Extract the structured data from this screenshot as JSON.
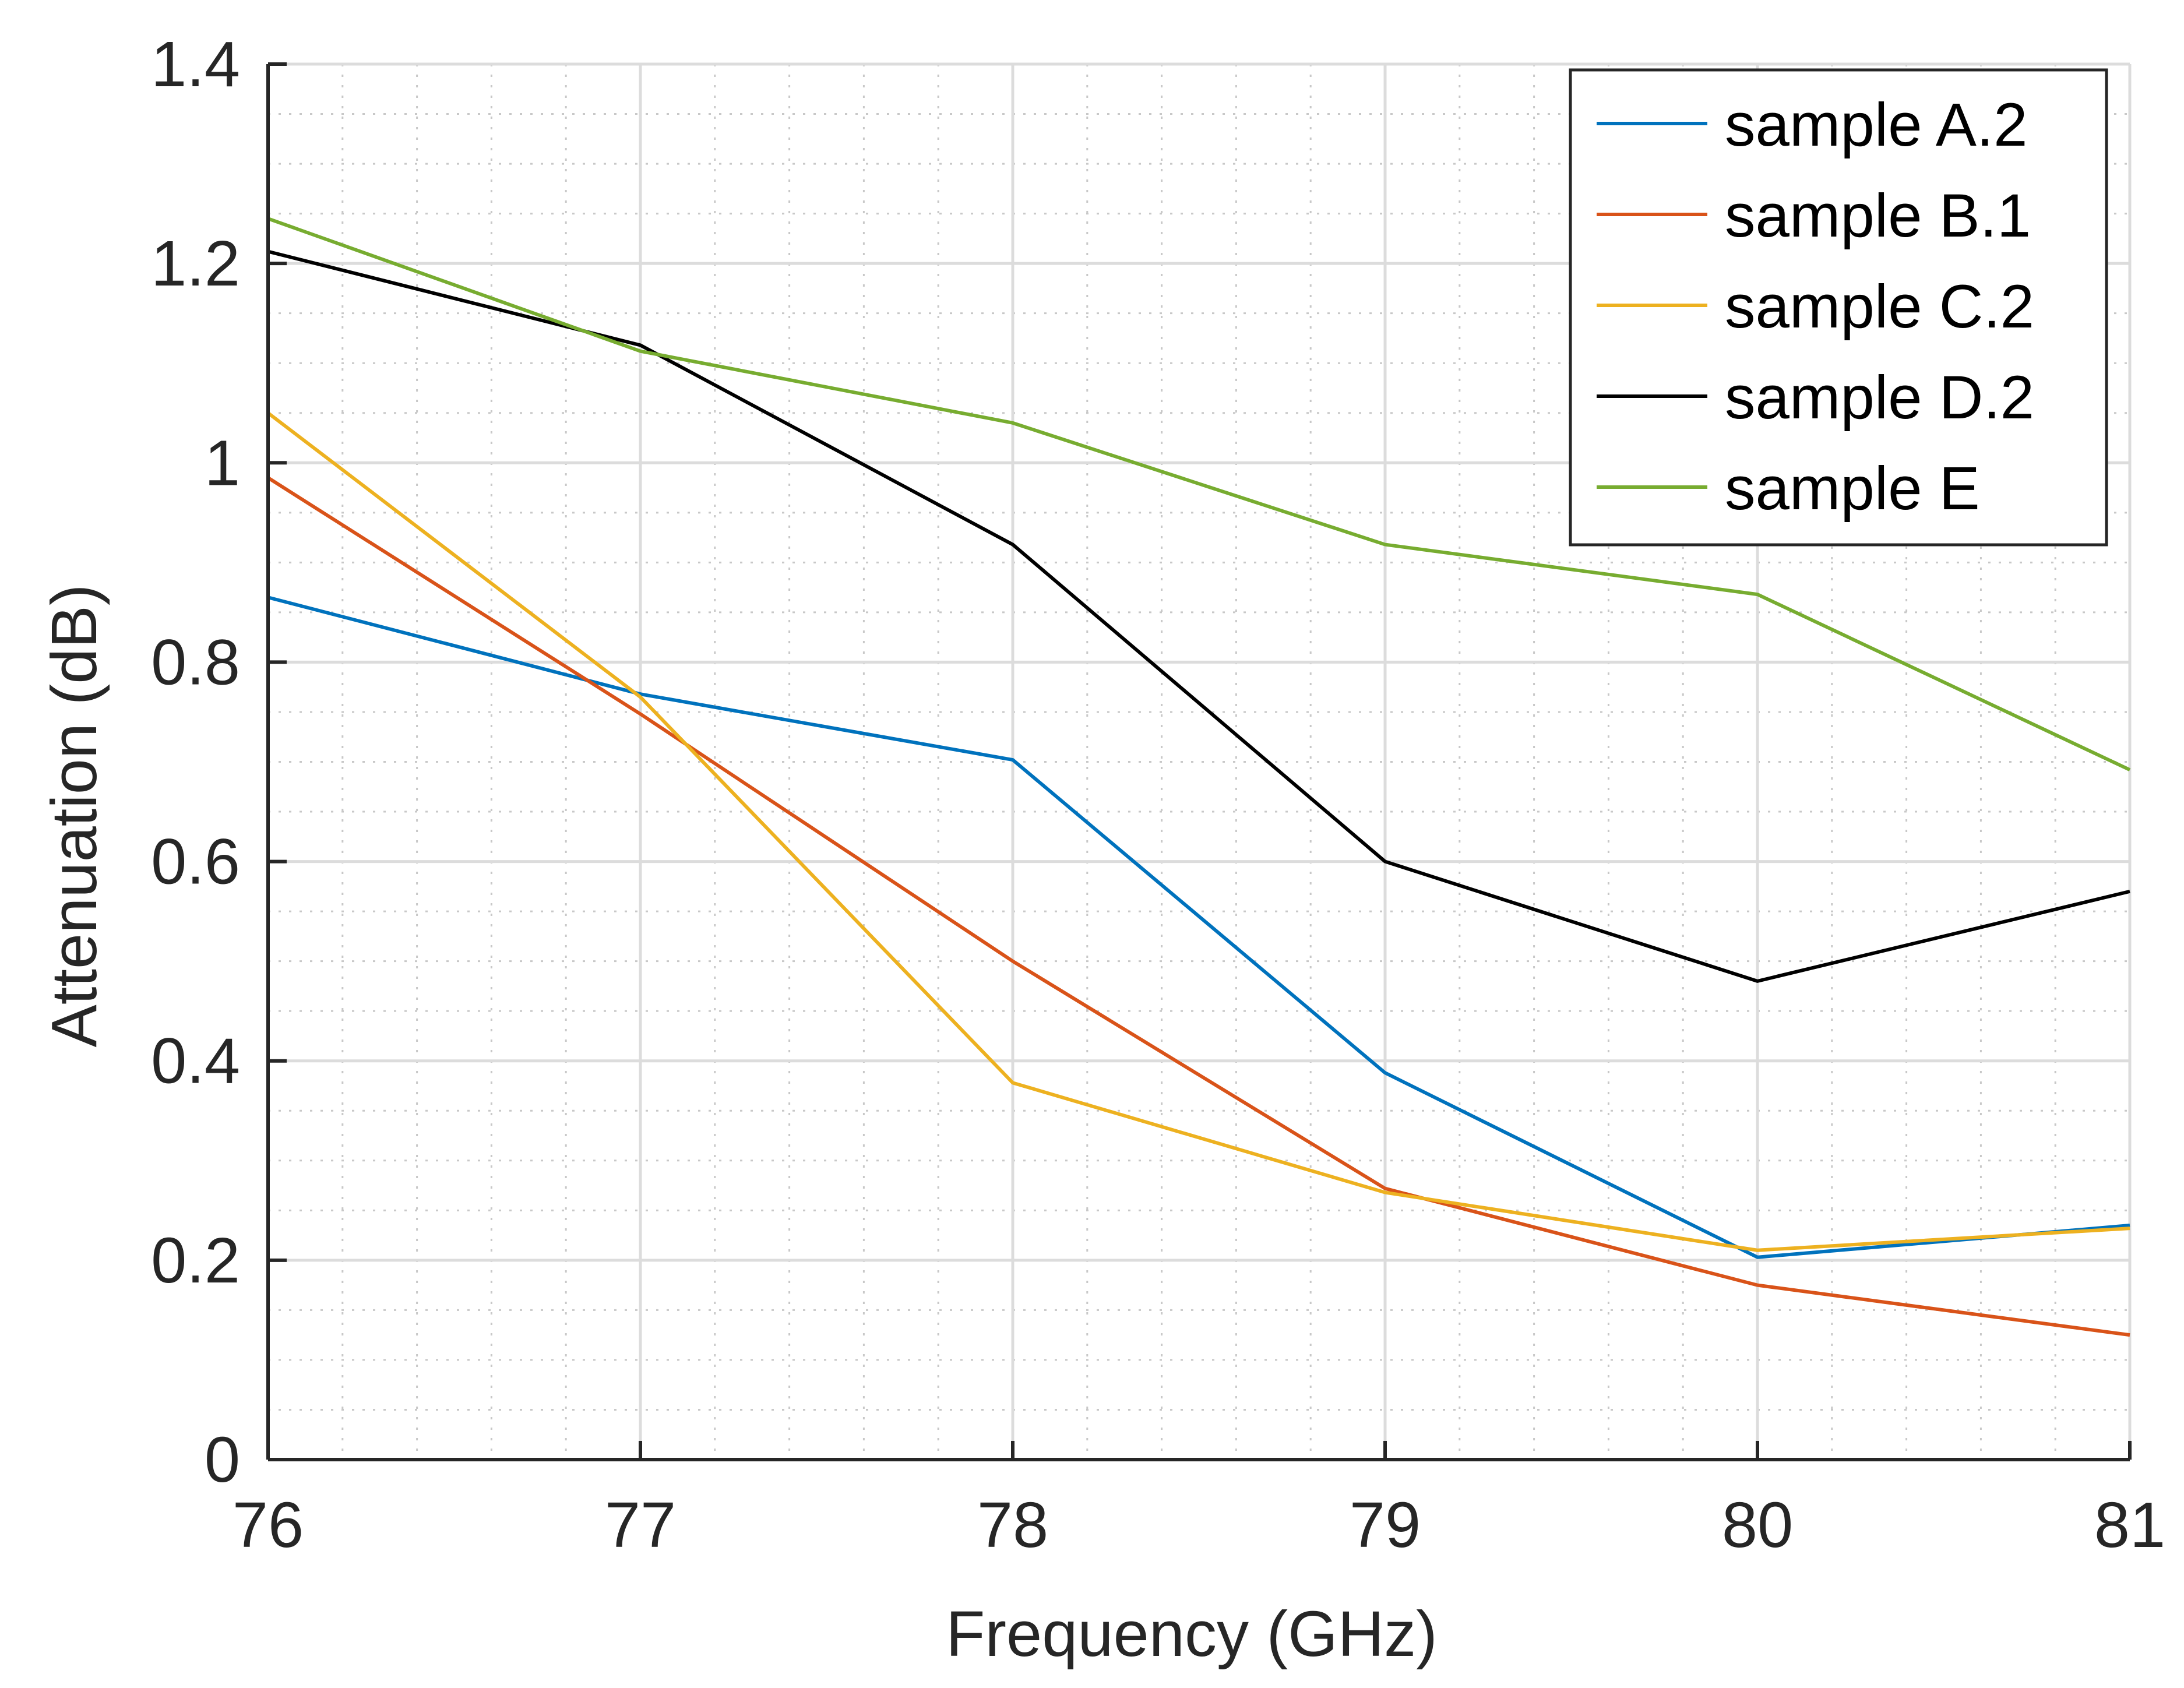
{
  "chart_data": {
    "type": "line",
    "title": "",
    "xlabel": "Frequency (GHz)",
    "ylabel": "Attenuation (dB)",
    "xlim": [
      76,
      81
    ],
    "ylim": [
      0,
      1.4
    ],
    "x": [
      76,
      77,
      78,
      79,
      80,
      81
    ],
    "xticks": [
      "76",
      "77",
      "78",
      "79",
      "80",
      "81"
    ],
    "yticks": [
      "0",
      "0.2",
      "0.4",
      "0.6",
      "0.8",
      "1",
      "1.2",
      "1.4"
    ],
    "grid": true,
    "minor_grid": true,
    "legend_position": "top-right",
    "series": [
      {
        "name": "sample A.2",
        "color": "#0072BD",
        "values": [
          0.865,
          0.768,
          0.702,
          0.388,
          0.203,
          0.235
        ]
      },
      {
        "name": "sample B.1",
        "color": "#D95319",
        "values": [
          0.985,
          0.748,
          0.5,
          0.272,
          0.175,
          0.125
        ]
      },
      {
        "name": "sample C.2",
        "color": "#EDB120",
        "values": [
          1.05,
          0.765,
          0.378,
          0.268,
          0.21,
          0.232
        ]
      },
      {
        "name": "sample D.2",
        "color": "#000000",
        "values": [
          1.212,
          1.118,
          0.918,
          0.6,
          0.48,
          0.57
        ]
      },
      {
        "name": "sample E",
        "color": "#77AC30",
        "values": [
          1.245,
          1.112,
          1.04,
          0.918,
          0.868,
          0.692
        ]
      }
    ]
  }
}
